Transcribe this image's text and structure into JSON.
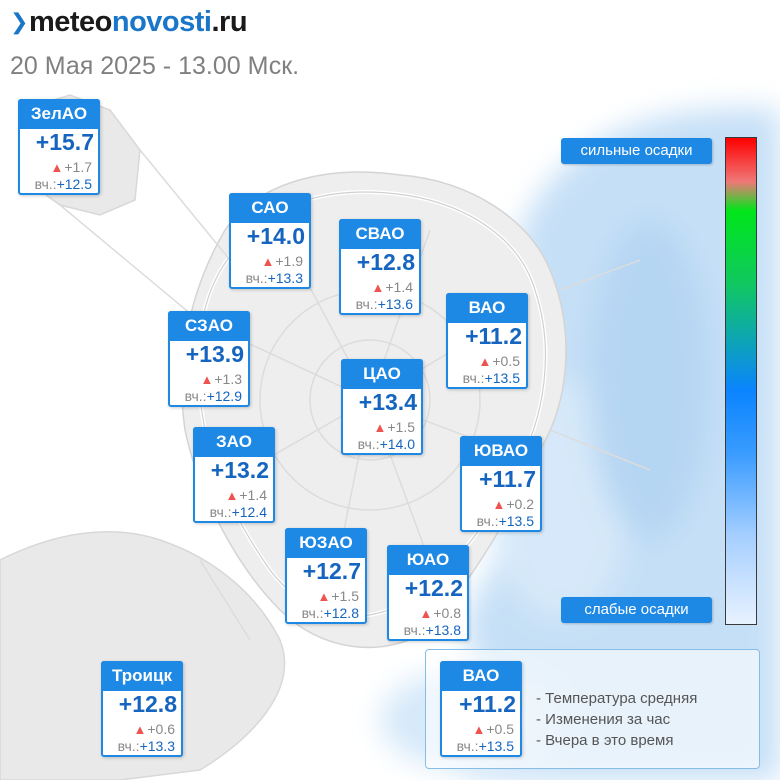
{
  "header": {
    "logo_part1": "meteo",
    "logo_part2": "novosti",
    "logo_part3": ".ru",
    "date_line": "20 Мая 2025 - 13.00 Мск."
  },
  "yesterday_prefix": "вч.:",
  "districts": [
    {
      "name": "ЗелАО",
      "temp": "+15.7",
      "change": "+1.7",
      "yesterday": "+12.5"
    },
    {
      "name": "САО",
      "temp": "+14.0",
      "change": "+1.9",
      "yesterday": "+13.3"
    },
    {
      "name": "СВАО",
      "temp": "+12.8",
      "change": "+1.4",
      "yesterday": "+13.6"
    },
    {
      "name": "ВАО",
      "temp": "+11.2",
      "change": "+0.5",
      "yesterday": "+13.5"
    },
    {
      "name": "СЗАО",
      "temp": "+13.9",
      "change": "+1.3",
      "yesterday": "+12.9"
    },
    {
      "name": "ЦАО",
      "temp": "+13.4",
      "change": "+1.5",
      "yesterday": "+14.0"
    },
    {
      "name": "ЗАО",
      "temp": "+13.2",
      "change": "+1.4",
      "yesterday": "+12.4"
    },
    {
      "name": "ЮВАО",
      "temp": "+11.7",
      "change": "+0.2",
      "yesterday": "+13.5"
    },
    {
      "name": "ЮЗАО",
      "temp": "+12.7",
      "change": "+1.5",
      "yesterday": "+12.8"
    },
    {
      "name": "ЮАО",
      "temp": "+12.2",
      "change": "+0.8",
      "yesterday": "+13.8"
    },
    {
      "name": "Троицк",
      "temp": "+12.8",
      "change": "+0.6",
      "yesterday": "+13.3"
    }
  ],
  "scale": {
    "top_label": "сильные осадки",
    "bottom_label": "слабые осадки"
  },
  "legend": {
    "example": {
      "name": "ВАО",
      "temp": "+11.2",
      "change": "+0.5",
      "yesterday": "+13.5"
    },
    "line1": "- Температура средняя",
    "line2": "- Изменения за час",
    "line3": "- Вчера в это время"
  },
  "colors": {
    "accent": "#1e88e5",
    "temperature_text": "#1565c0",
    "rise_arrow": "#ef5350",
    "precip_light": "#bcdaf5"
  },
  "icons": {
    "change_indicator": "triangle-up-icon"
  }
}
